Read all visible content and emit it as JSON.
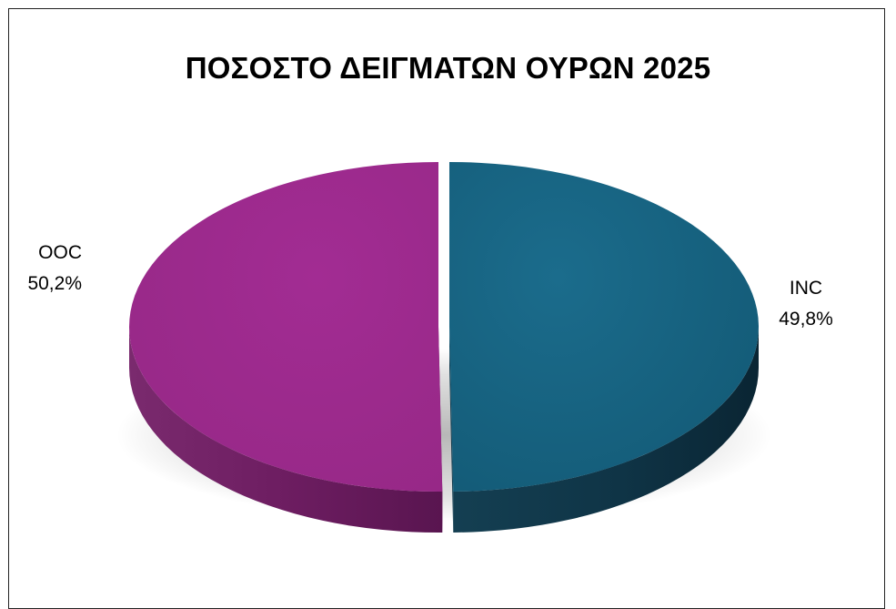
{
  "chart_data": {
    "type": "pie",
    "title": "ΠΟΣΟΣΤΟ ΔΕΙΓΜΑΤΩΝ ΟΥΡΩΝ 2025",
    "style": "3d-exploded",
    "slices": [
      {
        "name": "INC",
        "label": "INC",
        "pct_label": "49,8%",
        "value": 49.8,
        "color": "#17607e",
        "side_color": "#0e3a4e"
      },
      {
        "name": "OOC",
        "label": "OOC",
        "pct_label": "50,2%",
        "value": 50.2,
        "color": "#9f2b8f",
        "side_color": "#6a1b5f"
      }
    ],
    "legend": "none",
    "data_labels": "outside"
  }
}
